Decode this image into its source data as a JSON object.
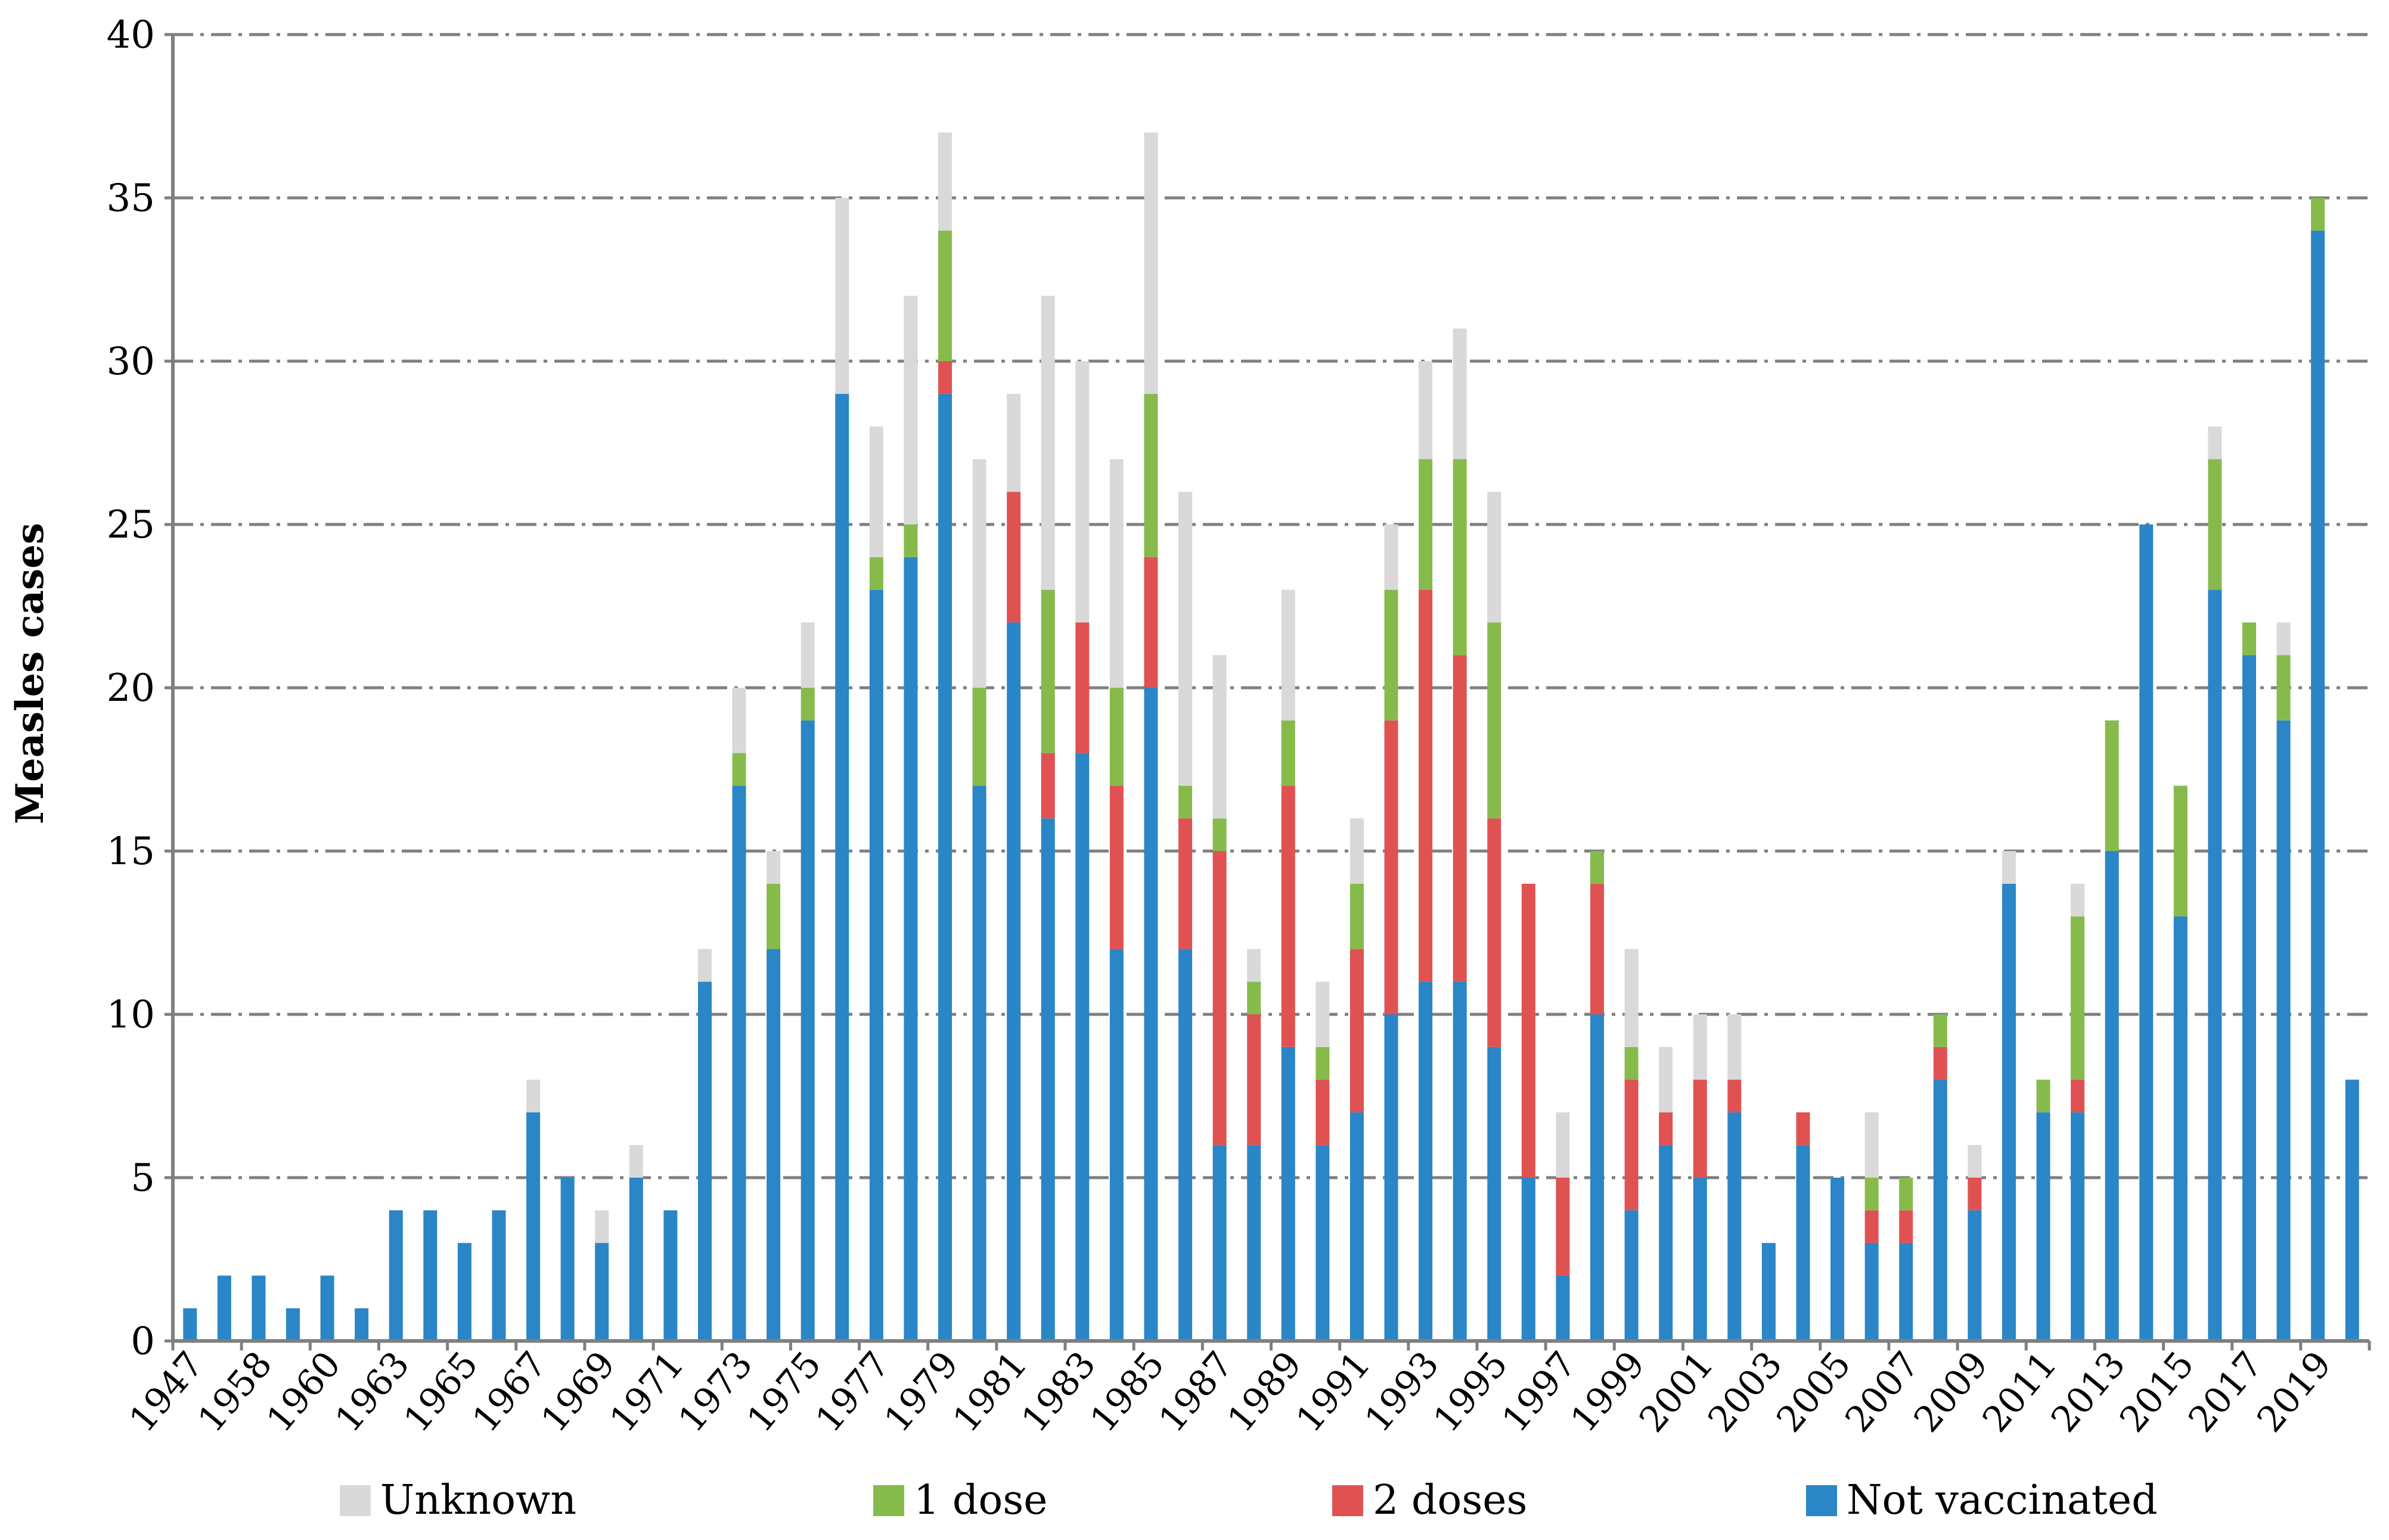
{
  "colors": {
    "not_vaccinated": "#2a86c6",
    "two_doses": "#e05252",
    "one_dose": "#86bb4b",
    "unknown": "#d9d9d9",
    "grid": "#7f7f7f",
    "axis": "#7f7f7f"
  },
  "chart_data": {
    "type": "bar",
    "stacked": true,
    "title": "",
    "xlabel": "",
    "ylabel": "Measles cases",
    "ylim": [
      0,
      40
    ],
    "yticks": [
      0,
      5,
      10,
      15,
      20,
      25,
      30,
      35,
      40
    ],
    "categories": [
      "1947",
      "1957",
      "1958",
      "1959",
      "1960",
      "1961",
      "1963",
      "1964",
      "1965",
      "1966",
      "1967",
      "1968",
      "1969",
      "1970",
      "1971",
      "1972",
      "1973",
      "1974",
      "1975",
      "1976",
      "1977",
      "1978",
      "1979",
      "1980",
      "1981",
      "1982",
      "1983",
      "1984",
      "1985",
      "1986",
      "1987",
      "1988",
      "1989",
      "1990",
      "1991",
      "1992",
      "1993",
      "1994",
      "1995",
      "1996",
      "1997",
      "1998",
      "1999",
      "2000",
      "2001",
      "2002",
      "2003",
      "2004",
      "2005",
      "2006",
      "2007",
      "2008",
      "2009",
      "2010",
      "2011",
      "2012",
      "2013",
      "2014",
      "2015",
      "2016",
      "2017",
      "2018",
      "2019",
      "2020"
    ],
    "tick_labels": [
      "1947",
      "1958",
      "1960",
      "1963",
      "1965",
      "1967",
      "1969",
      "1971",
      "1973",
      "1975",
      "1977",
      "1979",
      "1981",
      "1983",
      "1985",
      "1987",
      "1989",
      "1991",
      "1993",
      "1995",
      "1997",
      "1999",
      "2001",
      "2003",
      "2005",
      "2007",
      "2009",
      "2011",
      "2013",
      "2015",
      "2017",
      "2019"
    ],
    "series": [
      {
        "name": "Not vaccinated",
        "color_key": "not_vaccinated",
        "values": [
          1,
          2,
          2,
          1,
          2,
          1,
          4,
          4,
          3,
          4,
          7,
          5,
          3,
          5,
          4,
          11,
          17,
          12,
          19,
          29,
          23,
          24,
          29,
          17,
          22,
          16,
          18,
          12,
          20,
          12,
          6,
          6,
          9,
          6,
          7,
          10,
          11,
          11,
          9,
          5,
          2,
          10,
          4,
          6,
          5,
          7,
          3,
          6,
          5,
          3,
          3,
          8,
          4,
          14,
          7,
          7,
          15,
          25,
          13,
          23,
          21,
          19,
          34,
          8
        ]
      },
      {
        "name": "2 doses",
        "color_key": "two_doses",
        "values": [
          0,
          0,
          0,
          0,
          0,
          0,
          0,
          0,
          0,
          0,
          0,
          0,
          0,
          0,
          0,
          0,
          0,
          0,
          0,
          0,
          0,
          0,
          1,
          0,
          4,
          2,
          4,
          5,
          4,
          4,
          9,
          4,
          8,
          2,
          5,
          9,
          12,
          10,
          7,
          9,
          3,
          4,
          4,
          1,
          3,
          1,
          0,
          1,
          0,
          1,
          1,
          1,
          1,
          0,
          0,
          1,
          0,
          0,
          0,
          0,
          0,
          0,
          0,
          0
        ]
      },
      {
        "name": "1 dose",
        "color_key": "one_dose",
        "values": [
          0,
          0,
          0,
          0,
          0,
          0,
          0,
          0,
          0,
          0,
          0,
          0,
          0,
          0,
          0,
          0,
          1,
          2,
          1,
          0,
          1,
          1,
          4,
          3,
          0,
          5,
          0,
          3,
          5,
          1,
          1,
          1,
          2,
          1,
          2,
          4,
          4,
          6,
          6,
          0,
          0,
          1,
          1,
          0,
          0,
          0,
          0,
          0,
          0,
          1,
          1,
          1,
          0,
          0,
          1,
          5,
          4,
          0,
          4,
          4,
          1,
          2,
          1,
          0
        ]
      },
      {
        "name": "Unknown",
        "color_key": "unknown",
        "values": [
          0,
          0,
          0,
          0,
          0,
          0,
          0,
          0,
          0,
          0,
          1,
          0,
          1,
          1,
          0,
          1,
          2,
          1,
          2,
          6,
          4,
          7,
          3,
          7,
          3,
          9,
          8,
          7,
          8,
          9,
          5,
          1,
          4,
          2,
          2,
          2,
          3,
          4,
          4,
          0,
          2,
          0,
          3,
          2,
          2,
          2,
          0,
          0,
          0,
          2,
          0,
          0,
          1,
          1,
          0,
          1,
          0,
          0,
          0,
          1,
          0,
          1,
          0,
          0
        ]
      }
    ],
    "legend": {
      "placement": "bottom",
      "entries": [
        {
          "label": "Unknown",
          "color_key": "unknown"
        },
        {
          "label": "1 dose",
          "color_key": "one_dose"
        },
        {
          "label": "2 doses",
          "color_key": "two_doses"
        },
        {
          "label": "Not vaccinated",
          "color_key": "not_vaccinated"
        }
      ]
    }
  }
}
